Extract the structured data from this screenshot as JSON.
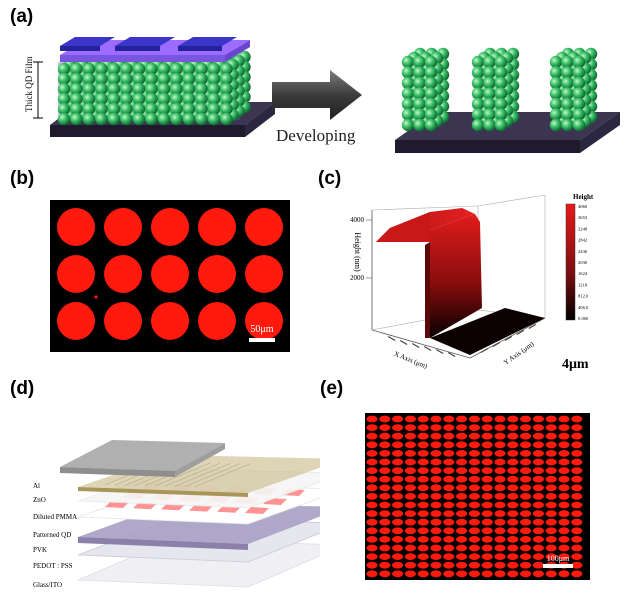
{
  "panels": {
    "a": {
      "label": "(a)",
      "thickness_label": "Thick QD Film",
      "arrow_label": "Developing",
      "colors": {
        "sphere": "#3fc46a",
        "sphere_light": "#c7f5cf",
        "sphere_dark": "#0d6b33",
        "mask": "#3a36c9",
        "photoresist": "#9b6cff",
        "substrate": "#2e2a38"
      }
    },
    "b": {
      "label": "(b)",
      "scale_bar": "50μm",
      "rows": 3,
      "cols": 5,
      "colors": {
        "dot": "#ff1a0d",
        "background": "#000000"
      }
    },
    "c": {
      "label": "(c)",
      "z_axis_label": "Height (nm)",
      "z_ticks": [
        "4000",
        "2000"
      ],
      "x_axis_label": "X Axis (μm)",
      "y_axis_label": "Y Axis (μm)",
      "colorbar_title": "Height",
      "colorbar_ticks": [
        "4060",
        "3653",
        "3248",
        "2842",
        "2436",
        "2030",
        "1624",
        "1218",
        "812.0",
        "406.0",
        "0.000"
      ],
      "scale_note": "4μm"
    },
    "d": {
      "label": "(d)",
      "layers": [
        "Al",
        "ZnO",
        "Diluted PMMA",
        "Patterned QD",
        "PVK",
        "PEDOT : PSS",
        "Glass/ITO"
      ]
    },
    "e": {
      "label": "(e)",
      "scale_bar": "100μm",
      "colors": {
        "dot": "#ff1a0d",
        "background": "#000000"
      }
    }
  }
}
